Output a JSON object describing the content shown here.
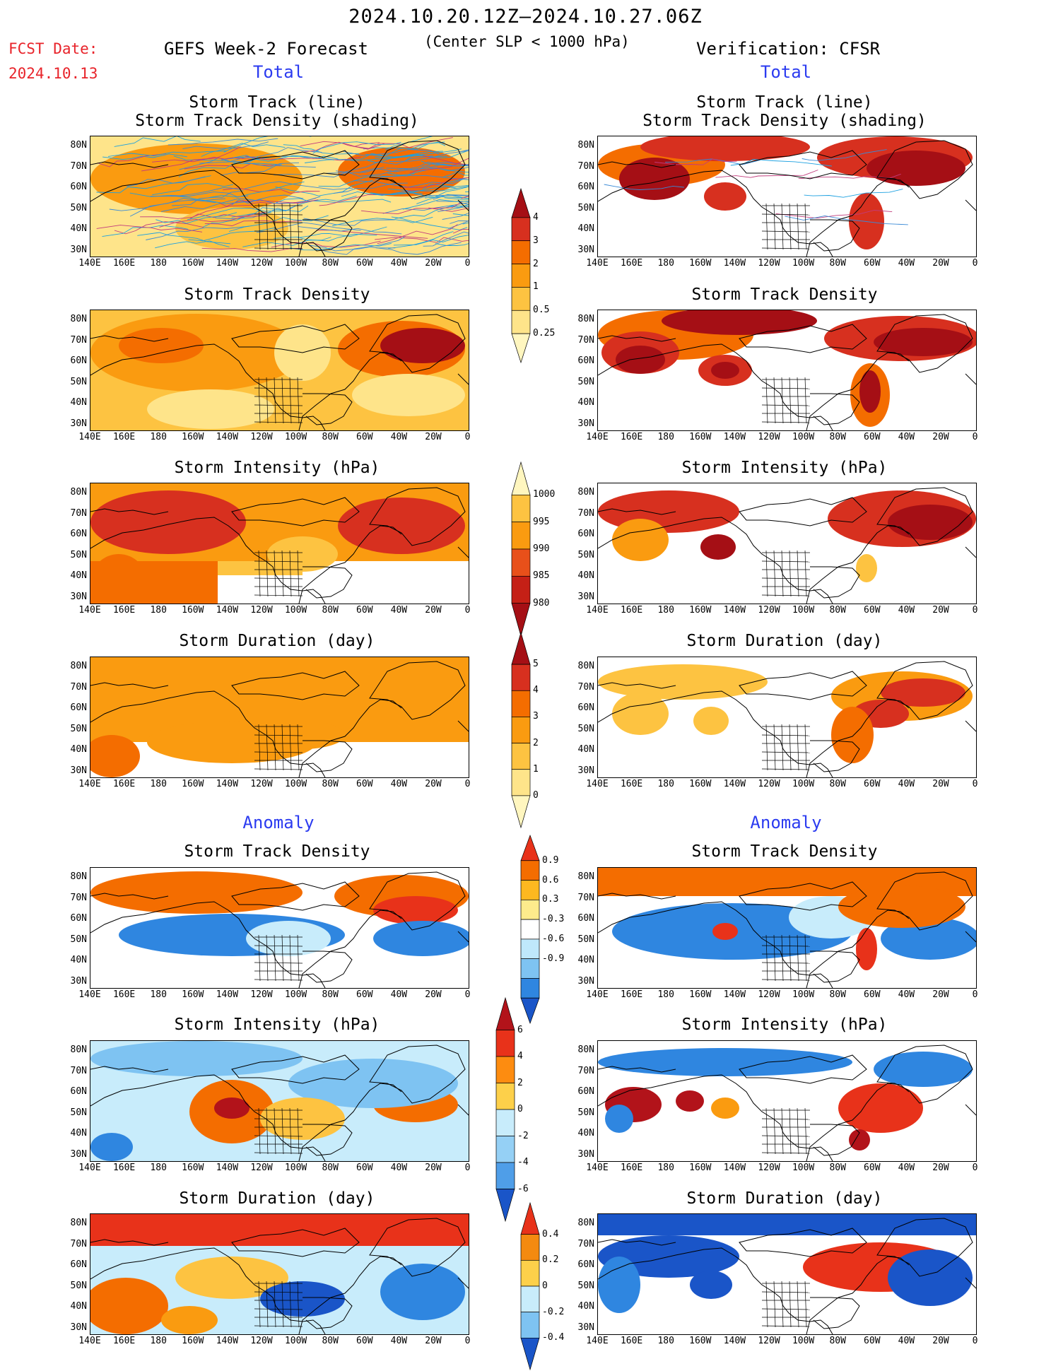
{
  "header": {
    "date_range": "2024.10.20.12Z—2024.10.27.06Z",
    "subtitle": "(Center SLP < 1000 hPa)",
    "fcst_label": "FCST Date:",
    "fcst_date": "2024.10.13",
    "left_title": "GEFS Week-2 Forecast",
    "right_title": "Verification: CFSR"
  },
  "sections": {
    "total": "Total",
    "anomaly": "Anomaly"
  },
  "panel_titles": {
    "track_line": "Storm Track (line)",
    "track_density_shading": "Storm Track Density (shading)",
    "track_density": "Storm Track Density",
    "intensity": "Storm Intensity (hPa)",
    "duration": "Storm Duration (day)"
  },
  "axes": {
    "lat_labels": [
      "80N",
      "70N",
      "60N",
      "50N",
      "40N",
      "30N"
    ],
    "lon_labels": [
      "140E",
      "160E",
      "180",
      "160W",
      "140W",
      "120W",
      "100W",
      "80W",
      "60W",
      "40W",
      "20W",
      "0"
    ]
  },
  "colorbars": {
    "density_total": {
      "labels": [
        "4",
        "3",
        "2",
        "1",
        "0.5",
        "0.25"
      ],
      "colors": [
        "#a50f15",
        "#d7301f",
        "#f46d00",
        "#fa9b10",
        "#fdc341",
        "#fee48a",
        "#fff6bf"
      ]
    },
    "intensity_total": {
      "labels": [
        "1000",
        "995",
        "990",
        "985",
        "980"
      ],
      "colors": [
        "#fff6bf",
        "#fdc341",
        "#fa9b10",
        "#e8501a",
        "#c52016",
        "#a50f15"
      ]
    },
    "duration_total": {
      "labels": [
        "5",
        "4",
        "3",
        "2",
        "1",
        "0"
      ],
      "colors": [
        "#a50f15",
        "#d7301f",
        "#f46d00",
        "#fa9b10",
        "#fdc341",
        "#fee48a",
        "#fff6bf"
      ]
    },
    "density_anom": {
      "labels": [
        "0.9",
        "0.6",
        "0.3",
        "-0.3",
        "-0.6",
        "-0.9"
      ],
      "colors": [
        "#e8321a",
        "#f46d00",
        "#fdb820",
        "#fdeb8c",
        "#ffffff",
        "#bfe8fb",
        "#7ec3f2",
        "#2f86e0",
        "#1a55c8"
      ]
    },
    "intensity_anom": {
      "labels": [
        "6",
        "4",
        "2",
        "0",
        "-2",
        "-4",
        "-6"
      ],
      "colors": [
        "#b2131a",
        "#e8321a",
        "#fd8c10",
        "#fdd04a",
        "#c8ecfb",
        "#95d0f5",
        "#4f9ee8",
        "#1a55c8"
      ]
    },
    "duration_anom": {
      "labels": [
        "0.4",
        "0.2",
        "0",
        "-0.2",
        "-0.4"
      ],
      "colors": [
        "#e8321a",
        "#f48a10",
        "#fdd04a",
        "#c8ecfb",
        "#7ec3f2",
        "#1a55c8"
      ]
    }
  }
}
